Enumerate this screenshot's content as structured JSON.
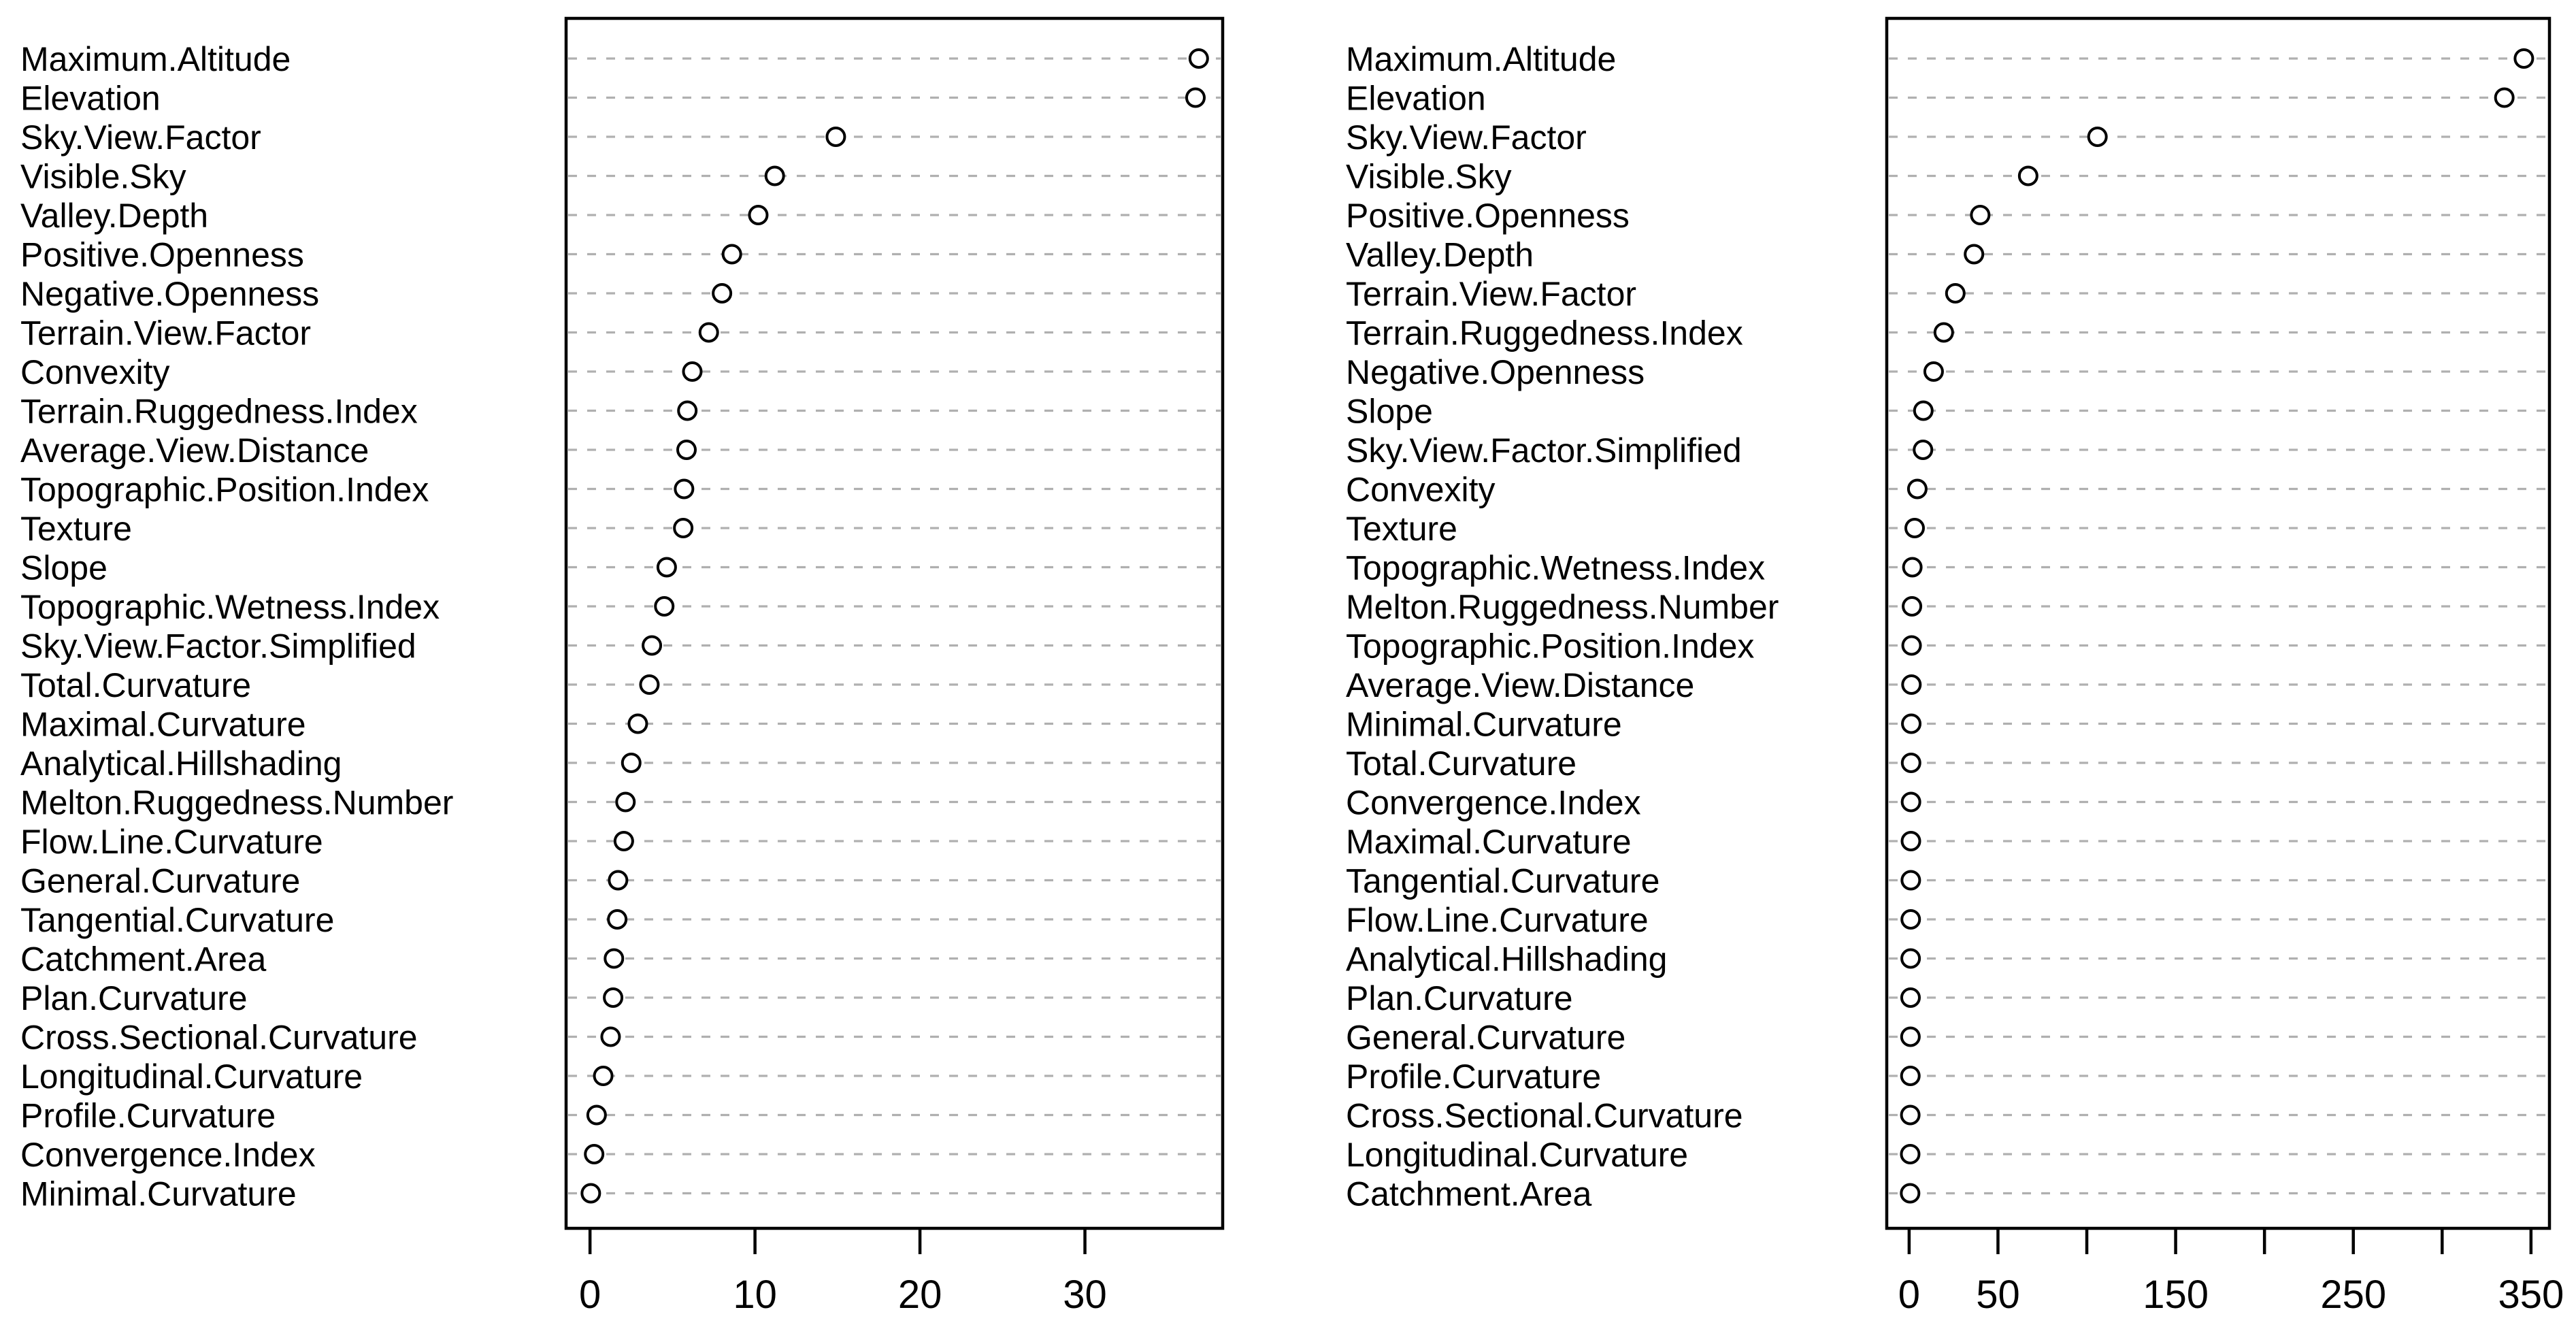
{
  "figure": {
    "background": "#ffffff",
    "title": ""
  },
  "styles": {
    "grid_color": "#b0b0b0",
    "axis_color": "#000000",
    "text_color": "#000000",
    "point_stroke_color": "#000000",
    "point_fill_color": "#ffffff"
  },
  "chart_data": [
    {
      "type": "scatter",
      "variant": "dotchart",
      "panel": "left",
      "title": "",
      "xlabel": "",
      "ylabel": "",
      "grid": "horizontal-dashed",
      "legend": "none",
      "xlim": [
        -1.45,
        38.35
      ],
      "xticks": [
        0,
        10,
        20,
        30
      ],
      "xtick_labels": [
        "0",
        "10",
        "20",
        "30"
      ],
      "categories": [
        "Maximum.Altitude",
        "Elevation",
        "Sky.View.Factor",
        "Visible.Sky",
        "Valley.Depth",
        "Positive.Openness",
        "Negative.Openness",
        "Terrain.View.Factor",
        "Convexity",
        "Terrain.Ruggedness.Index",
        "Average.View.Distance",
        "Topographic.Position.Index",
        "Texture",
        "Slope",
        "Topographic.Wetness.Index",
        "Sky.View.Factor.Simplified",
        "Total.Curvature",
        "Maximal.Curvature",
        "Analytical.Hillshading",
        "Melton.Ruggedness.Number",
        "Flow.Line.Curvature",
        "General.Curvature",
        "Tangential.Curvature",
        "Catchment.Area",
        "Plan.Curvature",
        "Cross.Sectional.Curvature",
        "Longitudinal.Curvature",
        "Profile.Curvature",
        "Convergence.Index",
        "Minimal.Curvature"
      ],
      "values": [
        36.9,
        36.7,
        14.9,
        11.2,
        10.2,
        8.6,
        8.0,
        7.2,
        6.2,
        5.9,
        5.85,
        5.7,
        5.65,
        4.65,
        4.5,
        3.75,
        3.6,
        2.9,
        2.5,
        2.15,
        2.05,
        1.7,
        1.65,
        1.45,
        1.4,
        1.25,
        0.8,
        0.4,
        0.25,
        0.05
      ]
    },
    {
      "type": "scatter",
      "variant": "dotchart",
      "panel": "right",
      "title": "",
      "xlabel": "",
      "ylabel": "",
      "grid": "horizontal-dashed",
      "legend": "none",
      "xlim": [
        -12.6,
        360.4
      ],
      "xticks": [
        0,
        50,
        100,
        150,
        200,
        250,
        300,
        350
      ],
      "xtick_labels": [
        "0",
        "50",
        "",
        "150",
        "",
        "250",
        "",
        "350"
      ],
      "categories": [
        "Maximum.Altitude",
        "Elevation",
        "Sky.View.Factor",
        "Visible.Sky",
        "Positive.Openness",
        "Valley.Depth",
        "Terrain.View.Factor",
        "Terrain.Ruggedness.Index",
        "Negative.Openness",
        "Slope",
        "Sky.View.Factor.Simplified",
        "Convexity",
        "Texture",
        "Topographic.Wetness.Index",
        "Melton.Ruggedness.Number",
        "Topographic.Position.Index",
        "Average.View.Distance",
        "Minimal.Curvature",
        "Total.Curvature",
        "Convergence.Index",
        "Maximal.Curvature",
        "Tangential.Curvature",
        "Flow.Line.Curvature",
        "Analytical.Hillshading",
        "Plan.Curvature",
        "General.Curvature",
        "Profile.Curvature",
        "Cross.Sectional.Curvature",
        "Longitudinal.Curvature",
        "Catchment.Area"
      ],
      "values": [
        346,
        335,
        106,
        67,
        40,
        36.5,
        26,
        19.5,
        13.8,
        8.0,
        7.8,
        4.6,
        3.1,
        1.8,
        1.6,
        1.4,
        1.3,
        1.2,
        1.1,
        1.05,
        1.0,
        0.95,
        0.9,
        0.85,
        0.8,
        0.75,
        0.7,
        0.65,
        0.6,
        0.55
      ]
    }
  ]
}
